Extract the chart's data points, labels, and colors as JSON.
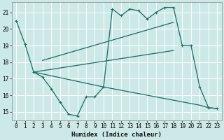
{
  "xlabel": "Humidex (Indice chaleur)",
  "xlim": [
    -0.5,
    23.5
  ],
  "ylim": [
    14.5,
    21.6
  ],
  "xticks": [
    0,
    1,
    2,
    3,
    4,
    5,
    6,
    7,
    8,
    9,
    10,
    11,
    12,
    13,
    14,
    15,
    16,
    17,
    18,
    19,
    20,
    21,
    22,
    23
  ],
  "yticks": [
    15,
    16,
    17,
    18,
    19,
    20,
    21
  ],
  "bg_color": "#cce9e7",
  "line_color": "#1a6b63",
  "grid_color": "#ffffff",
  "line1": {
    "x": [
      0,
      1,
      2,
      3,
      4,
      5,
      6,
      7,
      8,
      9,
      10,
      11,
      12,
      13,
      14,
      15,
      16,
      17,
      18,
      19,
      20,
      21,
      22,
      23
    ],
    "y": [
      20.5,
      19.1,
      17.4,
      17.1,
      16.4,
      15.6,
      14.85,
      14.75,
      15.9,
      15.9,
      16.5,
      21.2,
      20.8,
      21.2,
      21.1,
      20.6,
      21.0,
      21.3,
      21.3,
      19.0,
      19.0,
      16.5,
      15.25,
      15.2
    ]
  },
  "line2": {
    "x": [
      2,
      18
    ],
    "y": [
      17.4,
      18.7
    ]
  },
  "line3": {
    "x": [
      3,
      18
    ],
    "y": [
      18.1,
      20.4
    ]
  },
  "line4": {
    "x": [
      2,
      10,
      18,
      19,
      20,
      21,
      22,
      23
    ],
    "y": [
      17.4,
      16.5,
      15.7,
      15.6,
      15.5,
      15.4,
      15.25,
      15.2
    ]
  }
}
